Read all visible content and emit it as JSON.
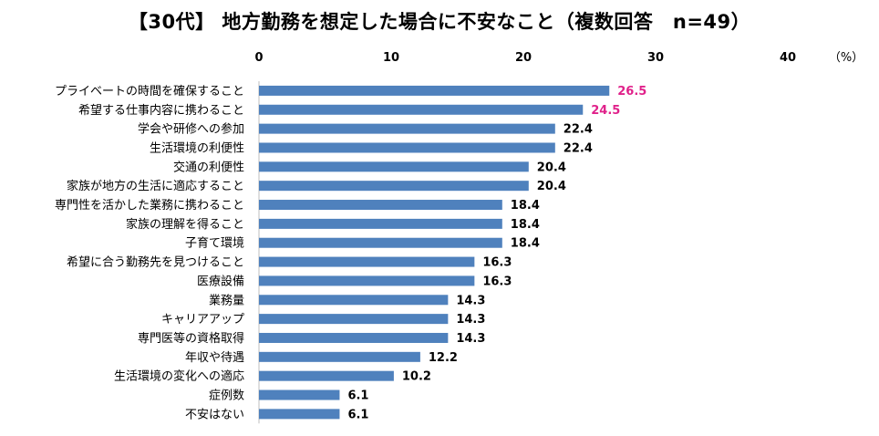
{
  "chart_data": {
    "type": "bar",
    "orientation": "horizontal",
    "title": "【30代】 地方勤務を想定した場合に不安なこと（複数回答　n=49）",
    "unit_label": "（%）",
    "xlim": [
      0,
      40
    ],
    "xticks": [
      0,
      10,
      20,
      30,
      40
    ],
    "bar_color": "#4f81bd",
    "highlight_color": "#e0218a",
    "label_color": "#000000",
    "categories": [
      "プライベートの時間を確保すること",
      "希望する仕事内容に携わること",
      "学会や研修への参加",
      "生活環境の利便性",
      "交通の利便性",
      "家族が地方の生活に適応すること",
      "専門性を活かした業務に携わること",
      "家族の理解を得ること",
      "子育て環境",
      "希望に合う勤務先を見つけること",
      "医療設備",
      "業務量",
      "キャリアアップ",
      "専門医等の資格取得",
      "年収や待遇",
      "生活環境の変化への適応",
      "症例数",
      "不安はない"
    ],
    "values": [
      26.5,
      24.5,
      22.4,
      22.4,
      20.4,
      20.4,
      18.4,
      18.4,
      18.4,
      16.3,
      16.3,
      14.3,
      14.3,
      14.3,
      12.2,
      10.2,
      6.1,
      6.1
    ],
    "value_labels": [
      "26.5",
      "24.5",
      "22.4",
      "22.4",
      "20.4",
      "20.4",
      "18.4",
      "18.4",
      "18.4",
      "16.3",
      "16.3",
      "14.3",
      "14.3",
      "14.3",
      "12.2",
      "10.2",
      "6.1",
      "6.1"
    ],
    "highlighted": [
      true,
      true,
      false,
      false,
      false,
      false,
      false,
      false,
      false,
      false,
      false,
      false,
      false,
      false,
      false,
      false,
      false,
      false
    ]
  }
}
